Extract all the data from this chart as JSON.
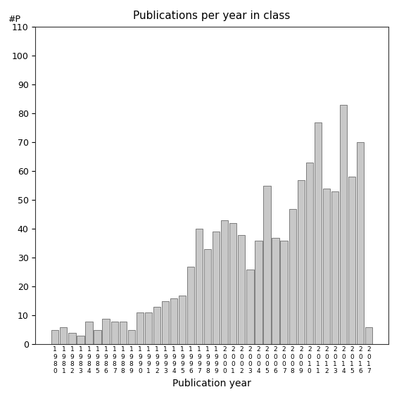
{
  "title": "Publications per year in class",
  "xlabel": "Publication year",
  "ylabel": "#P",
  "ylim": [
    0,
    110
  ],
  "yticks": [
    0,
    10,
    20,
    30,
    40,
    50,
    60,
    70,
    80,
    90,
    100,
    110
  ],
  "bar_color": "#c8c8c8",
  "bar_edge_color": "#555555",
  "background_color": "#ffffff",
  "years": [
    "1980",
    "1981",
    "1982",
    "1983",
    "1984",
    "1985",
    "1986",
    "1987",
    "1988",
    "1989",
    "1990",
    "1991",
    "1992",
    "1993",
    "1994",
    "1995",
    "1996",
    "1997",
    "1998",
    "1999",
    "2000",
    "2001",
    "2002",
    "2003",
    "2004",
    "2005",
    "2006",
    "2007",
    "2008",
    "2009",
    "2010",
    "2011",
    "2012",
    "2013",
    "2014",
    "2015",
    "2016",
    "2017"
  ],
  "values": [
    5,
    6,
    4,
    3,
    8,
    5,
    9,
    8,
    8,
    5,
    11,
    11,
    13,
    15,
    16,
    17,
    27,
    40,
    33,
    39,
    43,
    42,
    38,
    26,
    36,
    55,
    37,
    36,
    47,
    57,
    63,
    77,
    54,
    53,
    83,
    58,
    70,
    6
  ]
}
